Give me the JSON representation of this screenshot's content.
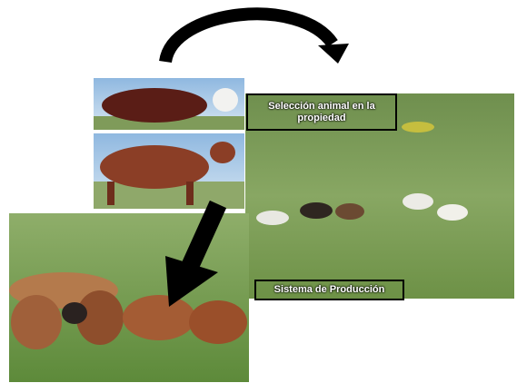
{
  "labels": [
    {
      "text": "Selección animal en la propiedad"
    },
    {
      "text": "Sistema de Producción"
    }
  ]
}
